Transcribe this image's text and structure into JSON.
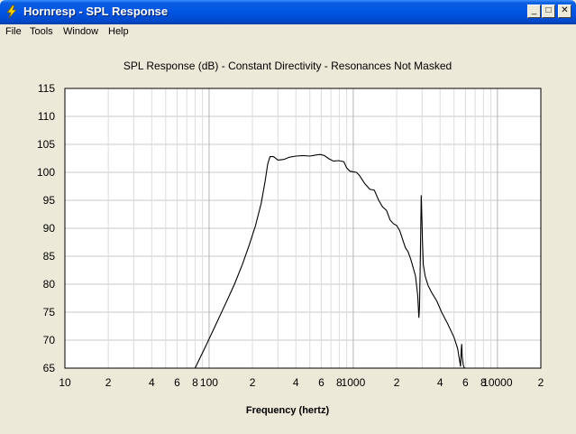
{
  "window": {
    "title": "Hornresp - SPL Response",
    "minimize_glyph": "_",
    "maximize_glyph": "□",
    "close_glyph": "✕",
    "icon": "lightning-icon"
  },
  "menu": {
    "items": [
      {
        "label": "File"
      },
      {
        "label": "Tools"
      },
      {
        "label": "Window"
      },
      {
        "label": "Help"
      }
    ]
  },
  "chart_data": {
    "type": "line",
    "title": "SPL Response (dB) - Constant Directivity - Resonances Not Masked",
    "xlabel": "Frequency (hertz)",
    "ylabel": "",
    "xscale": "log",
    "xlim": [
      10,
      20000
    ],
    "ylim": [
      65,
      115
    ],
    "yticks": [
      65,
      70,
      75,
      80,
      85,
      90,
      95,
      100,
      105,
      110,
      115
    ],
    "xtick_labels": [
      {
        "x": 10,
        "label": "10"
      },
      {
        "x": 20,
        "label": "2"
      },
      {
        "x": 40,
        "label": "4"
      },
      {
        "x": 60,
        "label": "6"
      },
      {
        "x": 80,
        "label": "8"
      },
      {
        "x": 100,
        "label": "100"
      },
      {
        "x": 200,
        "label": "2"
      },
      {
        "x": 400,
        "label": "4"
      },
      {
        "x": 600,
        "label": "6"
      },
      {
        "x": 800,
        "label": "8"
      },
      {
        "x": 1000,
        "label": "1000"
      },
      {
        "x": 2000,
        "label": "2"
      },
      {
        "x": 4000,
        "label": "4"
      },
      {
        "x": 6000,
        "label": "6"
      },
      {
        "x": 8000,
        "label": "8"
      },
      {
        "x": 10000,
        "label": "10000"
      },
      {
        "x": 20000,
        "label": "2"
      }
    ],
    "grid": true,
    "line_color": "#000000",
    "series": [
      {
        "values": [
          [
            80,
            65
          ],
          [
            95,
            69
          ],
          [
            110,
            72.5
          ],
          [
            130,
            76.5
          ],
          [
            150,
            80
          ],
          [
            170,
            83.5
          ],
          [
            190,
            87
          ],
          [
            210,
            90.5
          ],
          [
            230,
            94.5
          ],
          [
            245,
            98.5
          ],
          [
            255,
            101.5
          ],
          [
            265,
            102.8
          ],
          [
            280,
            102.8
          ],
          [
            300,
            102.2
          ],
          [
            330,
            102.3
          ],
          [
            360,
            102.7
          ],
          [
            400,
            102.9
          ],
          [
            450,
            103.0
          ],
          [
            500,
            102.9
          ],
          [
            550,
            103.1
          ],
          [
            590,
            103.2
          ],
          [
            630,
            103.0
          ],
          [
            680,
            102.4
          ],
          [
            730,
            102.0
          ],
          [
            790,
            102.1
          ],
          [
            860,
            101.9
          ],
          [
            900,
            100.8
          ],
          [
            950,
            100.2
          ],
          [
            1000,
            100.1
          ],
          [
            1050,
            100.0
          ],
          [
            1100,
            99.5
          ],
          [
            1200,
            98.0
          ],
          [
            1300,
            97.0
          ],
          [
            1400,
            96.8
          ],
          [
            1500,
            95.0
          ],
          [
            1600,
            93.8
          ],
          [
            1700,
            93.2
          ],
          [
            1800,
            91.5
          ],
          [
            1900,
            90.8
          ],
          [
            2000,
            90.5
          ],
          [
            2100,
            89.6
          ],
          [
            2200,
            88.0
          ],
          [
            2300,
            86.5
          ],
          [
            2400,
            85.8
          ],
          [
            2500,
            84.5
          ],
          [
            2600,
            83.0
          ],
          [
            2700,
            81.5
          ],
          [
            2800,
            78.0
          ],
          [
            2850,
            74.0
          ],
          [
            2880,
            76.0
          ],
          [
            2920,
            84.5
          ],
          [
            2960,
            95.9
          ],
          [
            3000,
            91.0
          ],
          [
            3020,
            87.5
          ],
          [
            3060,
            83.5
          ],
          [
            3150,
            81.5
          ],
          [
            3300,
            79.8
          ],
          [
            3500,
            78.5
          ],
          [
            3800,
            77.0
          ],
          [
            4100,
            75.0
          ],
          [
            4500,
            73.0
          ],
          [
            5000,
            70.5
          ],
          [
            5300,
            68.5
          ],
          [
            5450,
            66.5
          ],
          [
            5550,
            65.3
          ],
          [
            5600,
            68.0
          ],
          [
            5650,
            69.3
          ],
          [
            5700,
            67.0
          ],
          [
            5800,
            65.5
          ],
          [
            5900,
            65
          ]
        ]
      }
    ]
  }
}
